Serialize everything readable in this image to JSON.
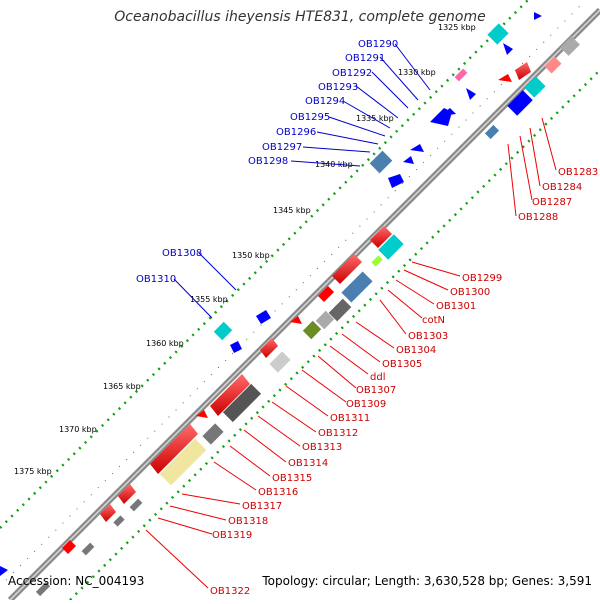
{
  "title": "Oceanobacillus iheyensis HTE831, complete genome",
  "accession": "Accession: NC_004193",
  "topology": "Topology: circular; Length: 3,630,528 bp; Genes: 3,591",
  "kbp_labels": [
    "1325 kbp",
    "1330 kbp",
    "1335 kbp",
    "1340 kbp",
    "1345 kbp",
    "1350 kbp",
    "1355 kbp",
    "1360 kbp",
    "1365 kbp",
    "1370 kbp",
    "1375 kbp"
  ],
  "blue_labels": [
    "OB1290",
    "OB1291",
    "OB1292",
    "OB1293",
    "OB1294",
    "OB1295",
    "OB1296",
    "OB1297",
    "OB1298",
    "OB1308",
    "OB1310"
  ],
  "red_labels": [
    "OB1283",
    "OB1284",
    "OB1287",
    "OB1288",
    "OB1299",
    "OB1300",
    "OB1301",
    "cotN",
    "OB1303",
    "OB1304",
    "OB1305",
    "ddl",
    "OB1307",
    "OB1309",
    "OB1311",
    "OB1312",
    "OB1313",
    "OB1314",
    "OB1315",
    "OB1316",
    "OB1317",
    "OB1318",
    "OB1319",
    "OB1322"
  ],
  "colors": {
    "forward": "#0000ff",
    "reverse": "#ff0000",
    "backbone": "#808080",
    "ticks": "#1a9a1a"
  }
}
